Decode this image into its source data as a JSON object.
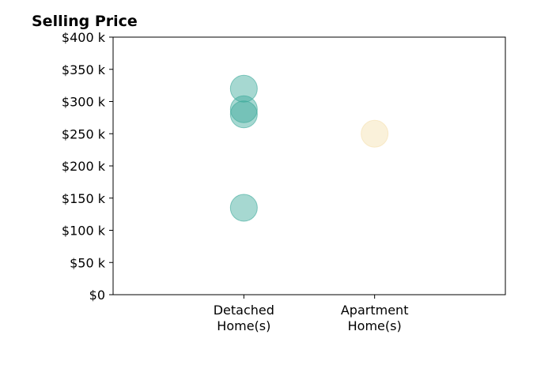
{
  "chart_data": {
    "type": "scatter",
    "title": "Selling Price",
    "xlabel": "",
    "ylabel": "",
    "categories": [
      "Detached Home(s)",
      "Apartment Home(s)"
    ],
    "category_lines": [
      [
        "Detached",
        "Home(s)"
      ],
      [
        "Apartment",
        "Home(s)"
      ]
    ],
    "ylim": [
      0,
      400000
    ],
    "y_ticks": [
      0,
      50000,
      100000,
      150000,
      200000,
      250000,
      300000,
      350000,
      400000
    ],
    "y_tick_labels": [
      "$0",
      "$50 k",
      "$100 k",
      "$150 k",
      "$200 k",
      "$250 k",
      "$300 k",
      "$350 k",
      "$400 k"
    ],
    "grid": false,
    "series": [
      {
        "category": "Detached Home(s)",
        "color": "#3aa99a",
        "values": [
          320000,
          288000,
          280000,
          135000
        ]
      },
      {
        "category": "Apartment Home(s)",
        "color": "#f5dfae",
        "values": [
          250000
        ]
      }
    ]
  }
}
